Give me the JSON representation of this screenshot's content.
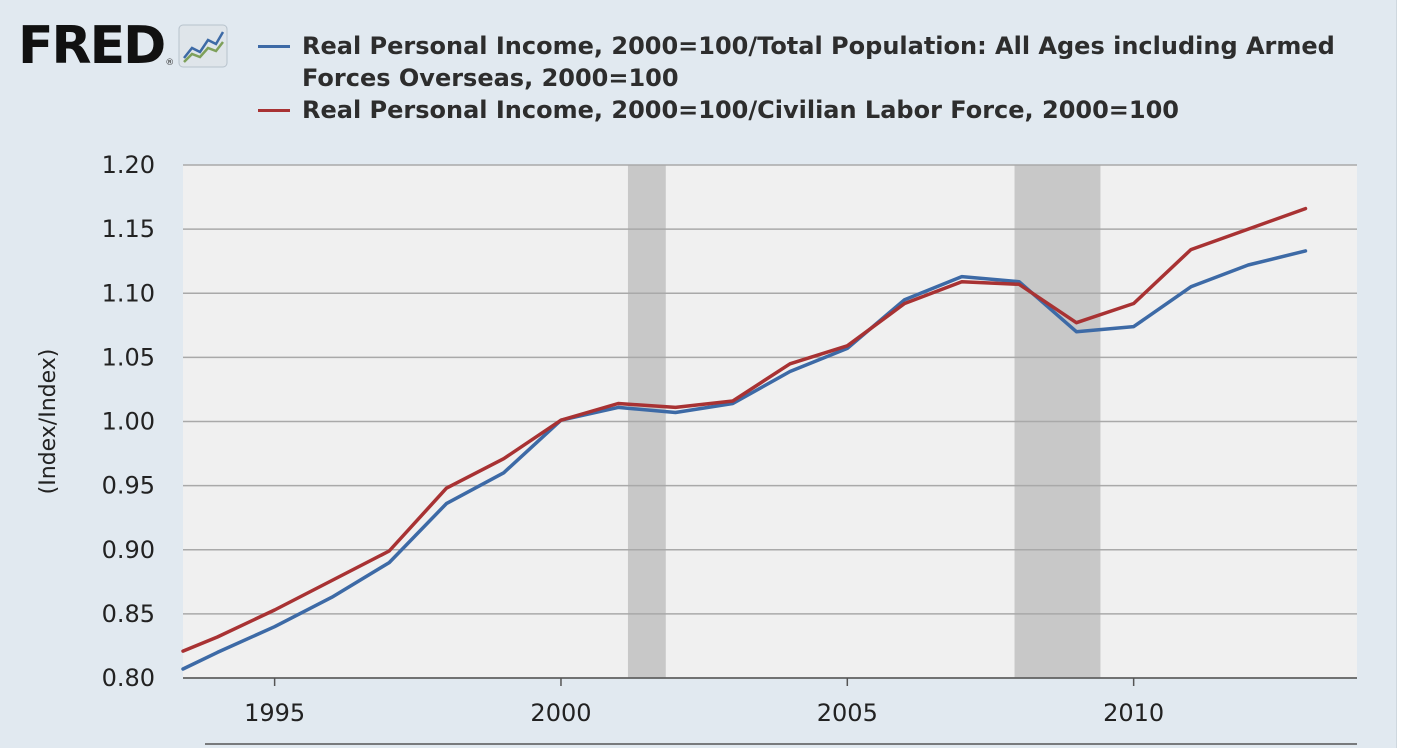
{
  "logo": {
    "text": "FRED",
    "reg": "®",
    "icon": "fred-chart-icon"
  },
  "colors": {
    "background": "#e1e9f0",
    "plot_background": "#f0f0f0",
    "grid": "#a9a9a9",
    "recession": "#c8c8c8",
    "series1": "#3d6aa6",
    "series2": "#a83233"
  },
  "chart_data": {
    "type": "line",
    "title": "",
    "xlabel": "",
    "ylabel": "(Index/Index)",
    "xlim": [
      1993.4,
      2013.9
    ],
    "ylim": [
      0.8,
      1.2
    ],
    "yticks": [
      "0.80",
      "0.85",
      "0.90",
      "0.95",
      "1.00",
      "1.05",
      "1.10",
      "1.15",
      "1.20"
    ],
    "xticks": [
      "1995",
      "2000",
      "2005",
      "2010"
    ],
    "grid": true,
    "legend_position": "top",
    "recessions": [
      [
        2001.17,
        2001.83
      ],
      [
        2007.92,
        2009.42
      ]
    ],
    "x": [
      1993.4,
      1994,
      1995,
      1996,
      1997,
      1998,
      1999,
      2000,
      2001,
      2002,
      2003,
      2004,
      2005,
      2006,
      2007,
      2008,
      2009,
      2010,
      2011,
      2012,
      2013
    ],
    "series": [
      {
        "name": "Real Personal Income, 2000=100/Total Population: All Ages including Armed Forces Overseas, 2000=100",
        "values": [
          0.807,
          0.82,
          0.84,
          0.863,
          0.89,
          0.936,
          0.96,
          1.001,
          1.011,
          1.007,
          1.014,
          1.039,
          1.057,
          1.095,
          1.113,
          1.109,
          1.07,
          1.074,
          1.105,
          1.122,
          1.133
        ]
      },
      {
        "name": "Real Personal Income, 2000=100/Civilian Labor Force, 2000=100",
        "values": [
          0.821,
          0.832,
          0.853,
          0.876,
          0.899,
          0.948,
          0.971,
          1.001,
          1.014,
          1.011,
          1.016,
          1.045,
          1.059,
          1.092,
          1.109,
          1.107,
          1.077,
          1.092,
          1.134,
          1.15,
          1.166
        ]
      }
    ]
  }
}
